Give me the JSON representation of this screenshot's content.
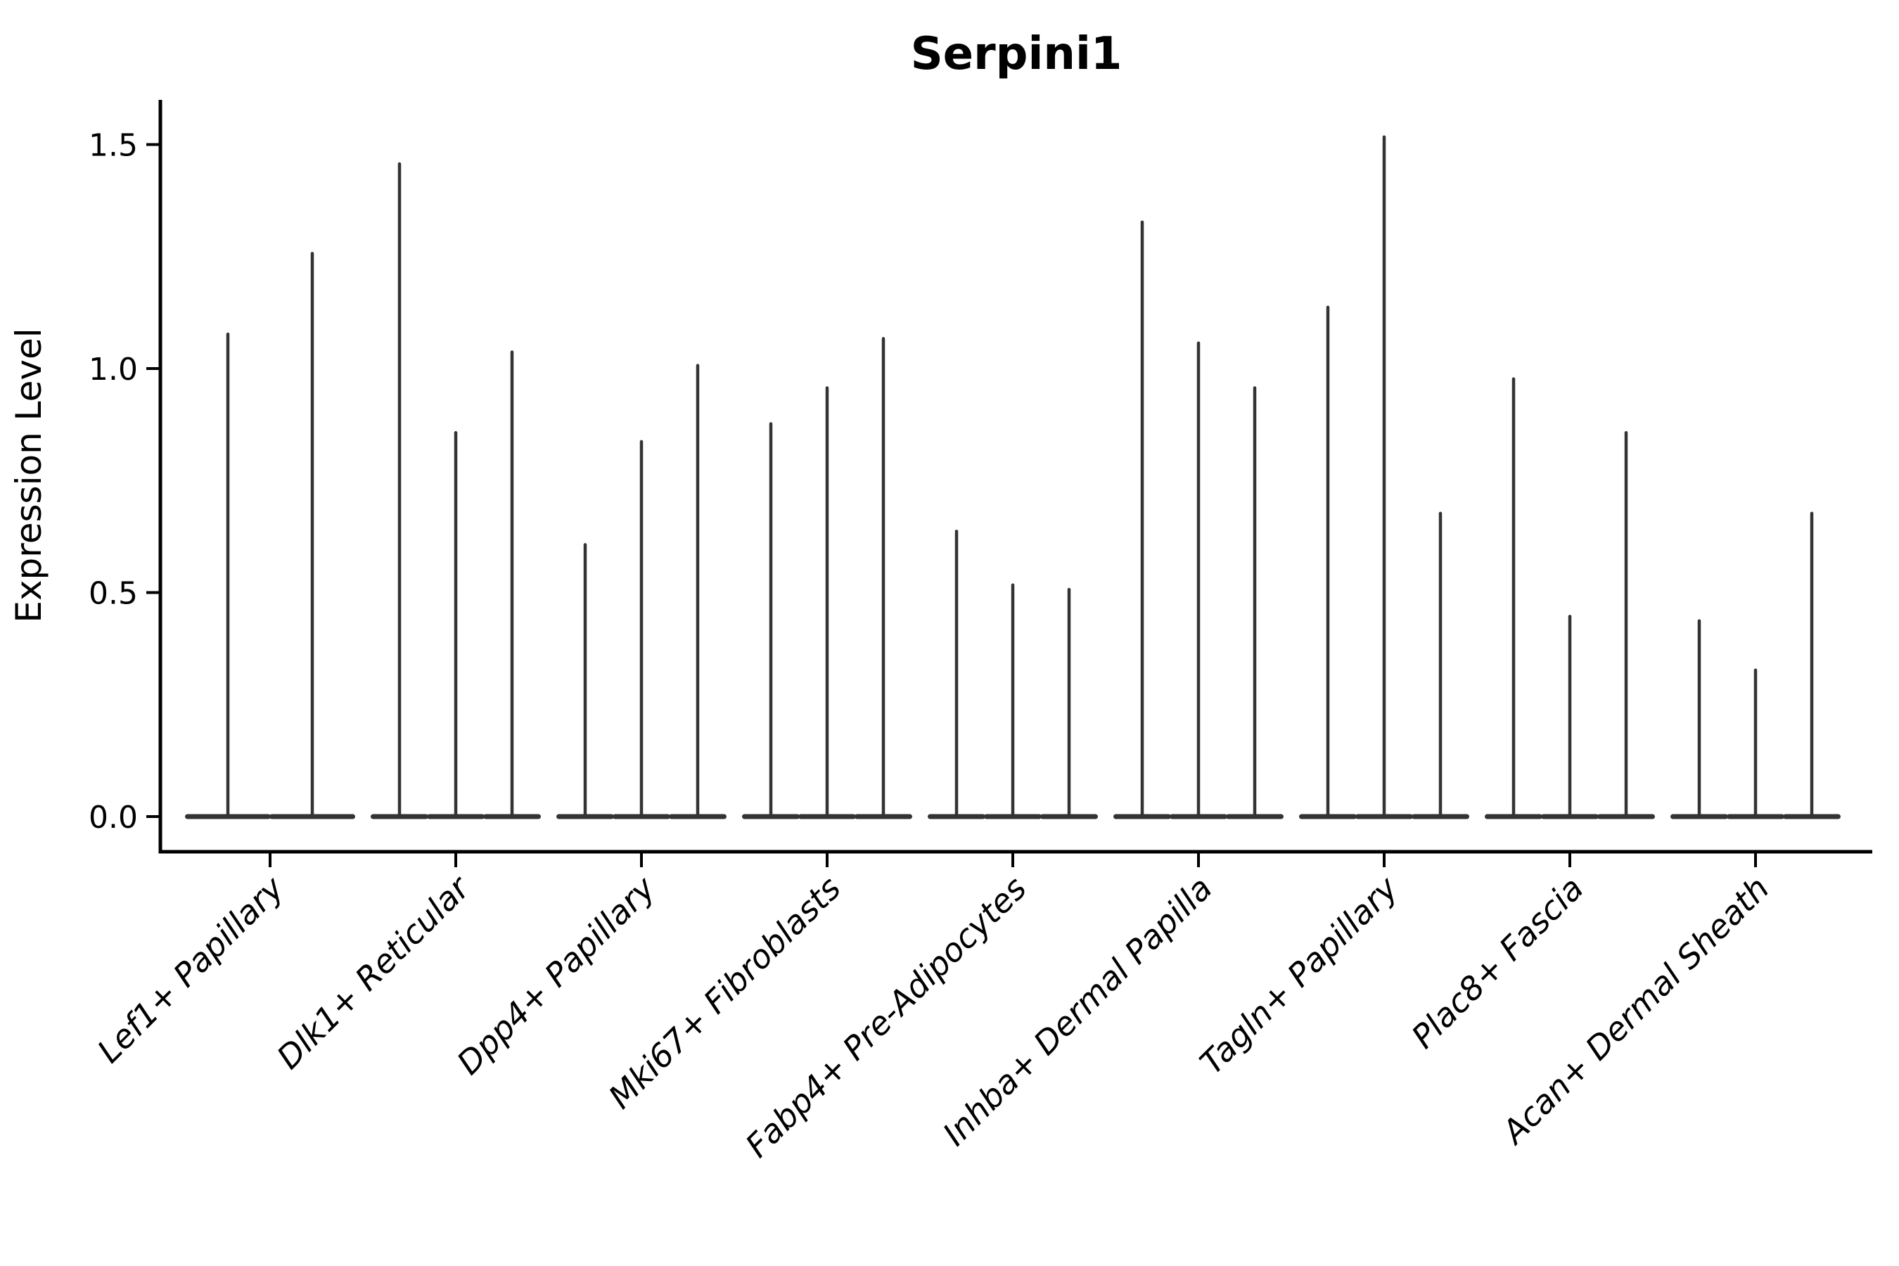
{
  "title": "Serpini1",
  "chart_data": {
    "type": "violin",
    "title": "Serpini1",
    "ylabel": "Expression Level",
    "xlabel": "",
    "ylim": [
      -0.08,
      1.6
    ],
    "baseline_value": 0.0,
    "grid": false,
    "legend": null,
    "yticks": {
      "values": [
        0.0,
        0.5,
        1.0,
        1.5
      ],
      "labels": [
        "0.0",
        "0.5",
        "1.0",
        "1.5"
      ]
    },
    "categories": [
      "Lef1+ Papillary",
      "Dlk1+ Reticular",
      "Dpp4+ Papillary",
      "Mki67+ Fibroblasts",
      "Fabp4+ Pre-Adipocytes",
      "Inhba+ Dermal Papilla",
      "Tagln+ Papillary",
      "Plac8+ Fascia",
      "Acan+ Dermal Sheath"
    ],
    "groups": [
      {
        "category": "Lef1+ Papillary",
        "violin_maxima": [
          1.08,
          1.26
        ]
      },
      {
        "category": "Dlk1+ Reticular",
        "violin_maxima": [
          1.46,
          0.86,
          1.04
        ]
      },
      {
        "category": "Dpp4+ Papillary",
        "violin_maxima": [
          0.61,
          0.84,
          1.01
        ]
      },
      {
        "category": "Mki67+ Fibroblasts",
        "violin_maxima": [
          0.88,
          0.96,
          1.07
        ]
      },
      {
        "category": "Fabp4+ Pre-Adipocytes",
        "violin_maxima": [
          0.64,
          0.52,
          0.51
        ]
      },
      {
        "category": "Inhba+ Dermal Papilla",
        "violin_maxima": [
          1.33,
          1.06,
          0.96
        ]
      },
      {
        "category": "Tagln+ Papillary",
        "violin_maxima": [
          1.14,
          1.52,
          0.68
        ]
      },
      {
        "category": "Plac8+ Fascia",
        "violin_maxima": [
          0.98,
          0.45,
          0.86
        ]
      },
      {
        "category": "Acan+ Dermal Sheath",
        "violin_maxima": [
          0.44,
          0.33,
          0.68
        ]
      }
    ],
    "colors": {
      "violin": "#333333",
      "axis": "#000000",
      "text": "#000000",
      "background": "#ffffff"
    }
  }
}
